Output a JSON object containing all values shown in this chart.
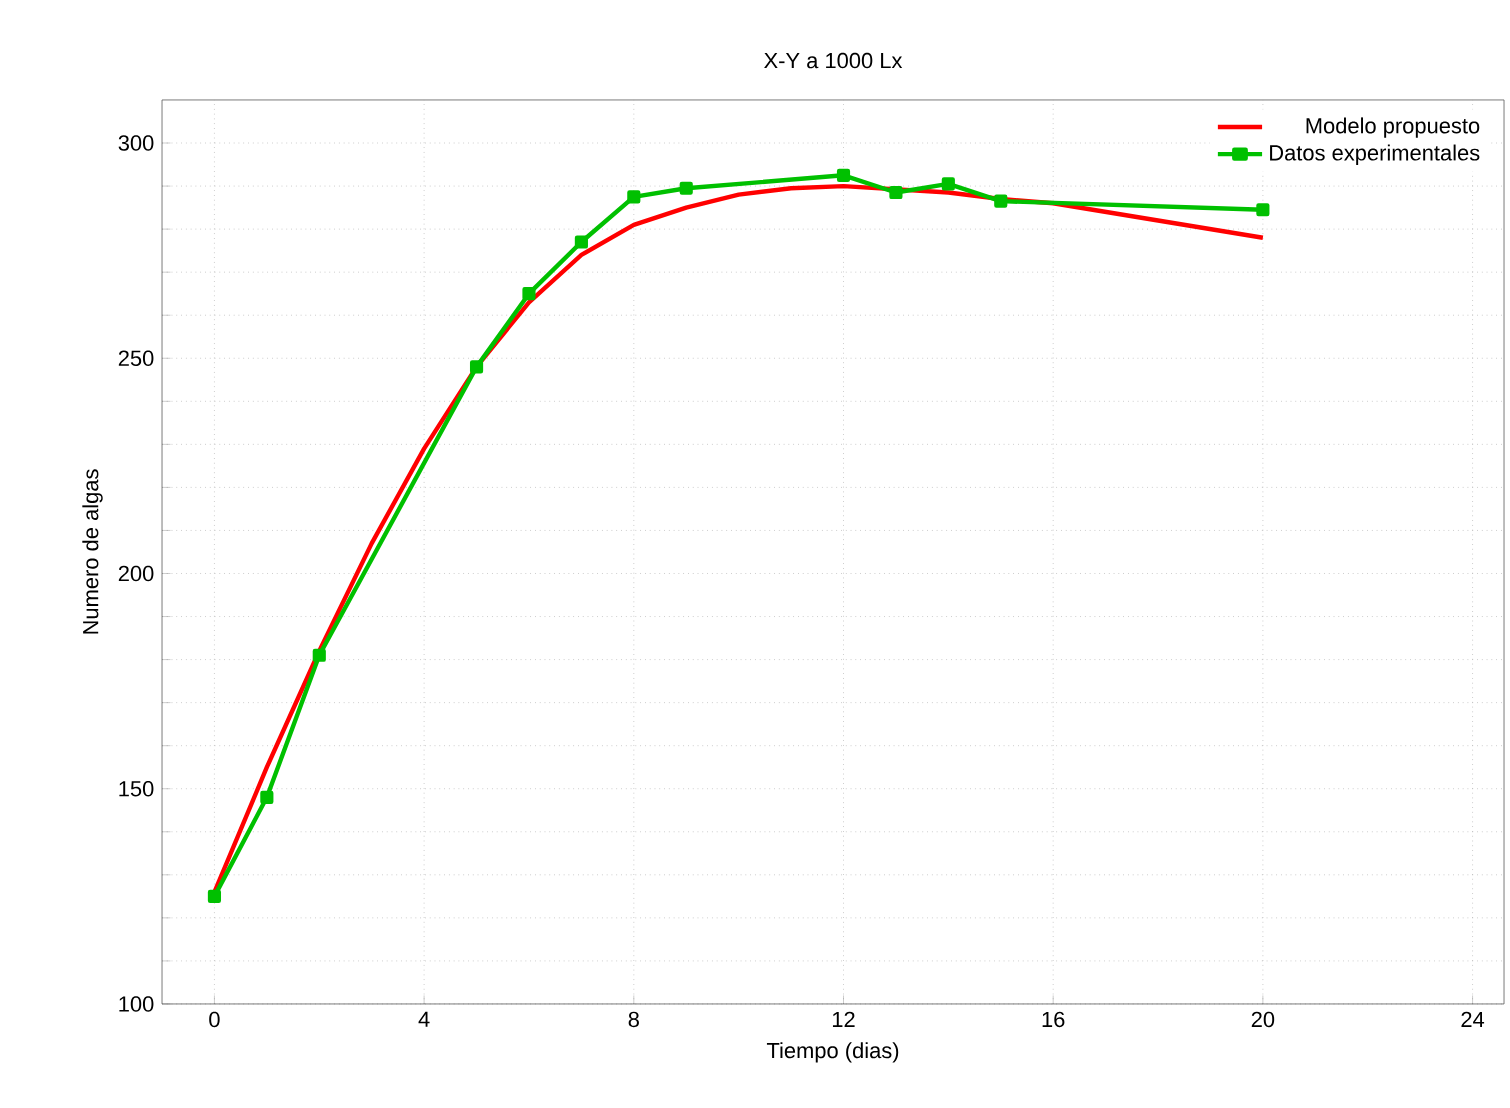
{
  "chart_data": {
    "type": "line",
    "title": "X-Y a 1000 Lx",
    "xlabel": "Tiempo (dias)",
    "ylabel": "Numero de algas",
    "xlim": [
      -1,
      24.6
    ],
    "ylim": [
      100,
      310
    ],
    "xticks": [
      0,
      4,
      8,
      12,
      16,
      20,
      24
    ],
    "yticks": [
      100,
      {
        "value": 110,
        "label": null
      },
      {
        "value": 120,
        "label": null
      },
      {
        "value": 130,
        "label": null
      },
      {
        "value": 140,
        "label": null
      },
      150,
      {
        "value": 160,
        "label": null
      },
      {
        "value": 170,
        "label": null
      },
      {
        "value": 180,
        "label": null
      },
      {
        "value": 190,
        "label": null
      },
      200,
      {
        "value": 210,
        "label": null
      },
      {
        "value": 220,
        "label": null
      },
      {
        "value": 230,
        "label": null
      },
      {
        "value": 240,
        "label": null
      },
      250,
      {
        "value": 260,
        "label": null
      },
      {
        "value": 270,
        "label": null
      },
      {
        "value": 280,
        "label": null
      },
      {
        "value": 290,
        "label": null
      },
      300
    ],
    "grid": true,
    "legend": "top right",
    "line_style": "solid",
    "series": [
      {
        "name": "Modelo propuesto",
        "color": "#ff0000",
        "marker": "none",
        "x": [
          0,
          1,
          2,
          3,
          4,
          5,
          6,
          7,
          8,
          9,
          10,
          11,
          12,
          14,
          15,
          16,
          18,
          20
        ],
        "values": [
          126,
          155,
          182,
          207,
          229,
          248,
          263,
          274,
          281,
          285,
          288,
          289.5,
          290,
          288.5,
          287,
          286,
          282,
          278
        ]
      },
      {
        "name": "Datos experimentales",
        "color": "#00c000",
        "marker": "square",
        "x": [
          0,
          1,
          2,
          5,
          6,
          7,
          8,
          9,
          12,
          13,
          14,
          15,
          20
        ],
        "values": [
          125,
          148,
          181,
          248,
          265,
          277,
          287.5,
          289.5,
          292.5,
          288.5,
          290.5,
          286.5,
          284.5
        ]
      }
    ]
  }
}
